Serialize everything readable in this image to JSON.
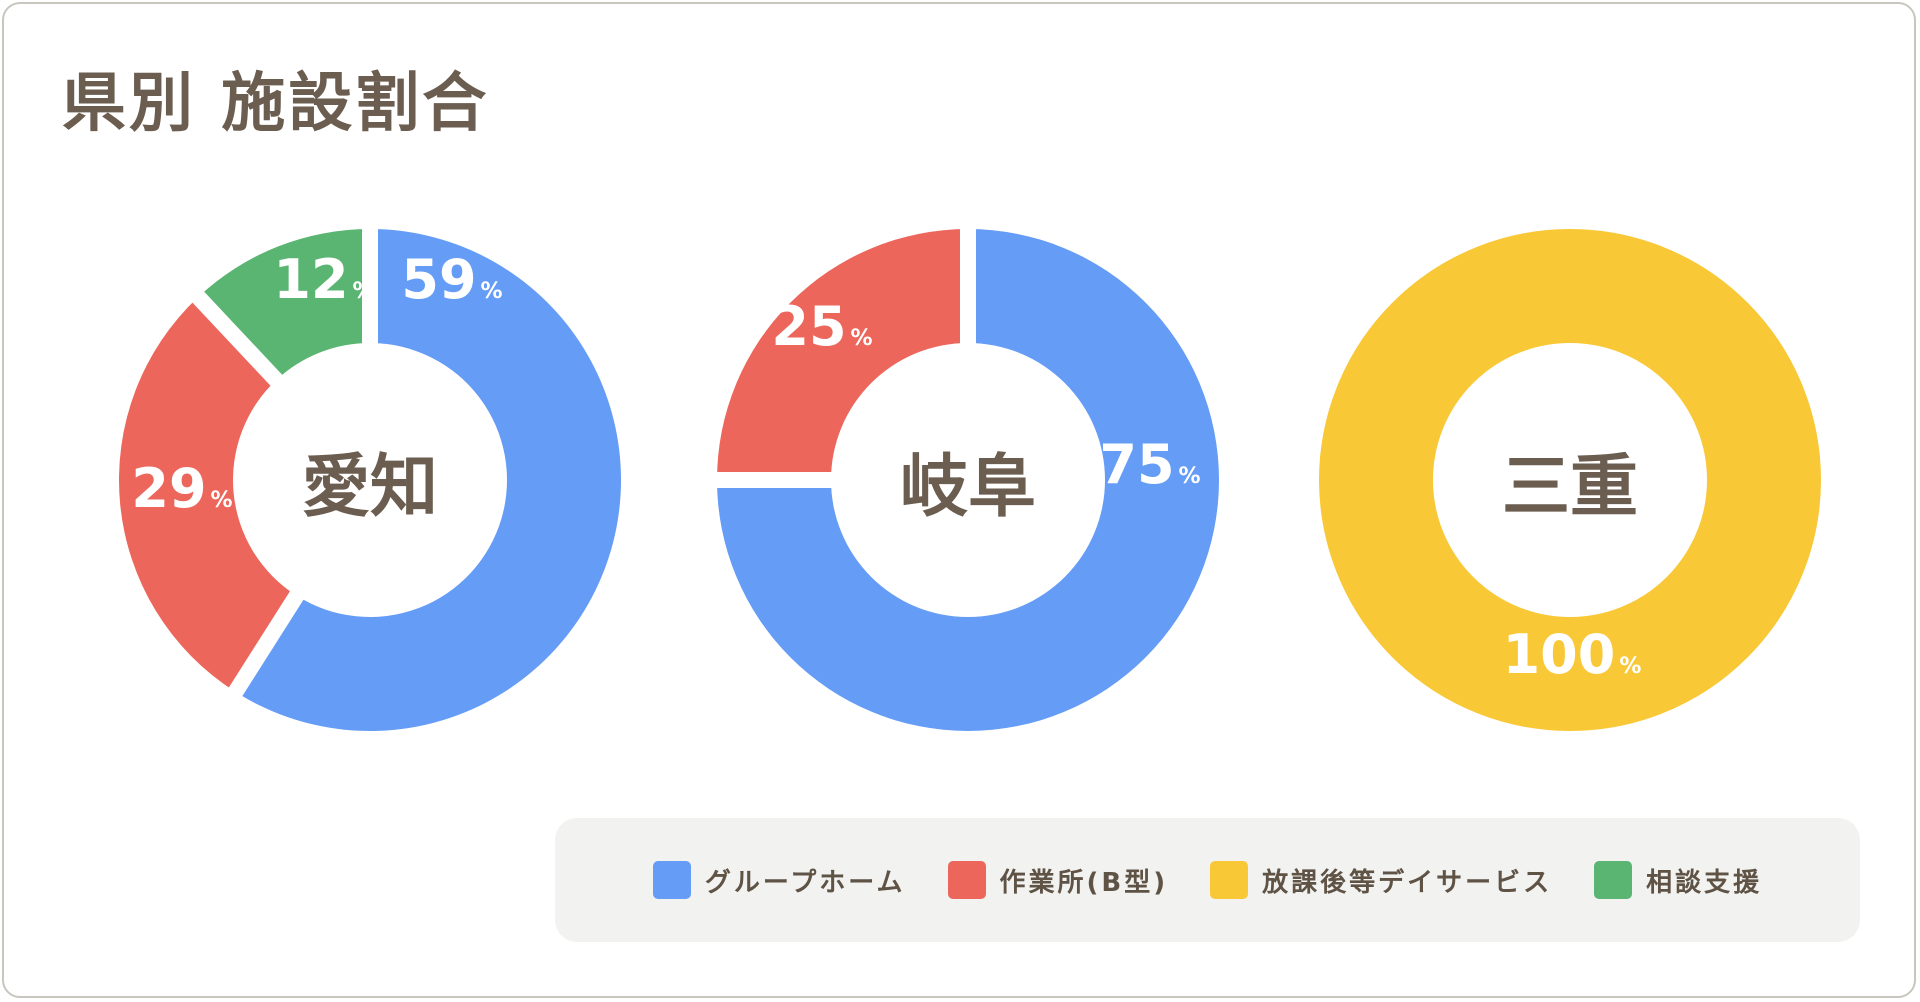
{
  "title": "県別 施設割合",
  "colors": {
    "グループホーム": "#659cf6",
    "作業所(B型)": "#ec665c",
    "放課後等デイサービス": "#f9c837",
    "相談支援": "#5bb572",
    "text": "#6b5d4f"
  },
  "legend": [
    {
      "label": "グループホーム",
      "color": "#659cf6"
    },
    {
      "label": "作業所(B型)",
      "color": "#ec665c"
    },
    {
      "label": "放課後等デイサービス",
      "color": "#f9c837"
    },
    {
      "label": "相談支援",
      "color": "#5bb572"
    }
  ],
  "chart_data": [
    {
      "type": "pie",
      "title": "愛知",
      "categories": [
        "グループホーム",
        "作業所(B型)",
        "相談支援"
      ],
      "values": [
        59,
        29,
        12
      ],
      "labels": [
        "59",
        "29",
        "12"
      ],
      "unit": "%"
    },
    {
      "type": "pie",
      "title": "岐阜",
      "categories": [
        "グループホーム",
        "作業所(B型)"
      ],
      "values": [
        75,
        25
      ],
      "labels": [
        "75",
        "25"
      ],
      "unit": "%"
    },
    {
      "type": "pie",
      "title": "三重",
      "categories": [
        "放課後等デイサービス"
      ],
      "values": [
        100
      ],
      "labels": [
        "100"
      ],
      "unit": "%"
    }
  ]
}
